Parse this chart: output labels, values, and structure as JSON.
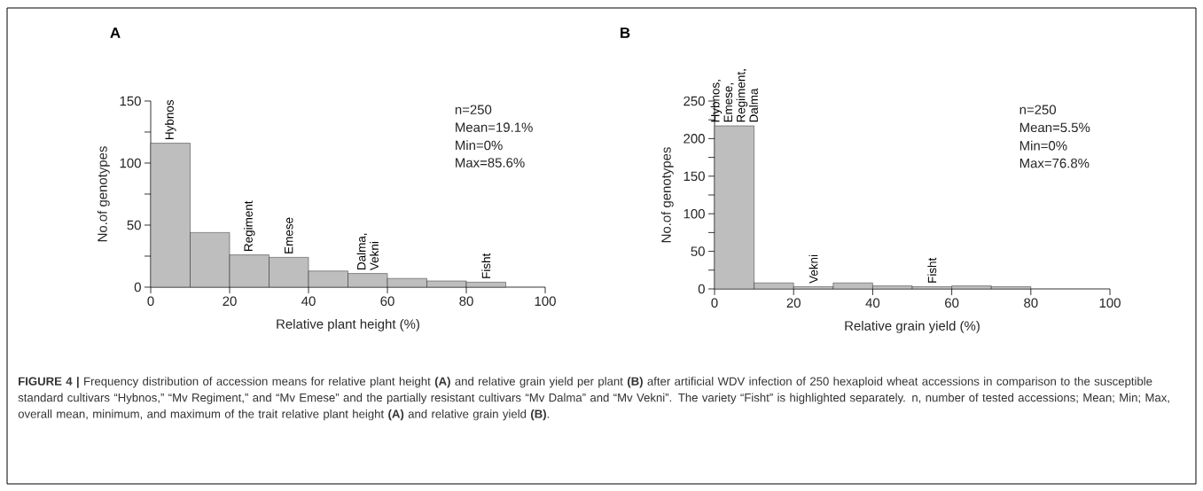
{
  "chart_data": [
    {
      "type": "histogram",
      "title": "A",
      "xlabel": "Relative plant height (%)",
      "ylabel": "No.of genotypes",
      "bins": [
        0,
        10,
        20,
        30,
        40,
        50,
        60,
        70,
        80,
        90
      ],
      "values": [
        116,
        44,
        26,
        24,
        13,
        11,
        7,
        5,
        4
      ],
      "color": "#bebebe",
      "xlim": [
        0,
        100
      ],
      "xticks": [
        0,
        20,
        40,
        60,
        80,
        100
      ],
      "ylim": [
        0,
        150
      ],
      "yticks": [
        0,
        {
          "value": 25,
          "label": null
        },
        50,
        {
          "value": 75,
          "label": null
        },
        100,
        {
          "value": 125,
          "label": null
        },
        150
      ],
      "grid": false,
      "annotations": [
        {
          "text": "Hybnos",
          "x": 5,
          "y": 116
        },
        {
          "text": "Regiment",
          "x": 25,
          "y": 26
        },
        {
          "text": "Emese",
          "x": 35,
          "y": 24
        },
        {
          "text": "Dalma, Vekni",
          "x": 55,
          "y": 11
        },
        {
          "text": "Fisht",
          "x": 85,
          "y": 4
        },
        "n=250",
        "Mean=19.1%",
        "Min=0%",
        "Max=85.6%"
      ]
    },
    {
      "type": "histogram",
      "title": "B",
      "xlabel": "Relative grain yield (%)",
      "ylabel": "No.of genotypes",
      "bins": [
        0,
        10,
        20,
        30,
        40,
        50,
        60,
        70,
        80
      ],
      "values": [
        217,
        8,
        3,
        8,
        4,
        3,
        4,
        3
      ],
      "color": "#bebebe",
      "xlim": [
        0,
        100
      ],
      "xticks": [
        0,
        20,
        40,
        60,
        80,
        100
      ],
      "ylim": [
        0,
        250
      ],
      "yticks": [
        0,
        {
          "value": 25,
          "label": null
        },
        50,
        {
          "value": 75,
          "label": null
        },
        100,
        {
          "value": 125,
          "label": null
        },
        150,
        {
          "value": 175,
          "label": null
        },
        200,
        {
          "value": 225,
          "label": null
        },
        250
      ],
      "grid": false,
      "annotations": [
        {
          "text": "Hybnos, Emese, Regiment, Dalma",
          "x": 5,
          "y": 217
        },
        {
          "text": "Vekni",
          "x": 25,
          "y": 3
        },
        {
          "text": "Fisht",
          "x": 55,
          "y": 3
        },
        "n=250",
        "Mean=5.5%",
        "Min=0%",
        "Max=76.8%",
        "**FIGURE 4 |** Frequency distribution of accession means for relative plant height **(A)** and relative grain yield per plant **(B)** after artificial WDV infection of 250 hexaploid wheat accessions in comparison to the susceptible standard cultivars “Hybnos,” “Mv Regiment,” and “Mv Emese” and the partially resistant cultivars “Mv Dalma” and “Mv Vekni”. The variety “Fisht” is highlighted separately. n, number of tested accessions; Mean; Min; Max, overall mean, minimum, and maximum of the trait relative plant height **(A)** and relative grain yield **(B)**."
      ]
    }
  ]
}
